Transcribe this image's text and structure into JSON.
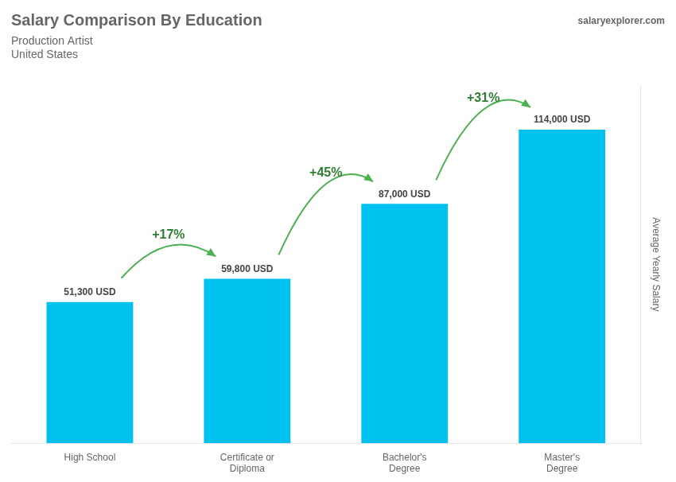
{
  "chart_data": {
    "type": "bar",
    "title": "Salary Comparison By Education",
    "subtitle": [
      "Production Artist",
      "United States"
    ],
    "source": "salaryexplorer.com",
    "categories": [
      "High School",
      "Certificate or\nDiploma",
      "Bachelor's\nDegree",
      "Master's\nDegree"
    ],
    "values": [
      51300,
      59800,
      87000,
      114000
    ],
    "value_labels": [
      "51,300 USD",
      "59,800 USD",
      "87,000 USD",
      "114,000 USD"
    ],
    "data_labels": true,
    "annotations": [
      "+17%",
      "+45%",
      "+31%"
    ],
    "color": "#00c0ee",
    "ylabel": "Average Yearly Salary",
    "ylim": [
      0,
      130000
    ],
    "tick_labels": "x",
    "grid": false
  }
}
